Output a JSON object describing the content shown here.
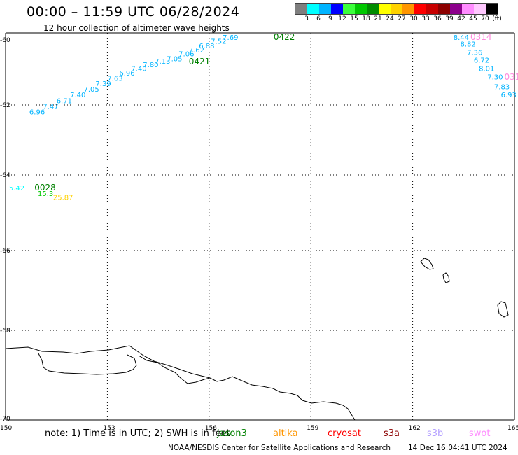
{
  "title": "00:00 – 11:59 UTC 06/28/2024",
  "subtitle": "12 hour collection of altimeter wave heights",
  "legend": {
    "colors": [
      "#7f7f7f",
      "#00ffff",
      "#00b4ff",
      "#0000ff",
      "#3cff3c",
      "#00c800",
      "#008c00",
      "#ffff00",
      "#ffd200",
      "#ff9600",
      "#ff0000",
      "#c80000",
      "#8c0000",
      "#8c008c",
      "#ff8cff",
      "#ffc8ff",
      "#000000"
    ],
    "labels": [
      "3",
      "6",
      "9",
      "12",
      "15",
      "18",
      "21",
      "24",
      "27",
      "30",
      "33",
      "36",
      "39",
      "42",
      "45",
      "70",
      "(ft)"
    ]
  },
  "axes": {
    "x_ticks": [
      "150",
      "153",
      "156",
      "159",
      "162",
      "165"
    ],
    "y_ticks": [
      "-60",
      "-62",
      "-64",
      "-66",
      "-68",
      "-70"
    ]
  },
  "tracks": [
    {
      "name": "0422",
      "color": "#008000",
      "label_pos": [
        157.9,
        -60.0
      ],
      "points": [
        {
          "v": "6.96",
          "lon": 150.7,
          "lat": -61.97
        },
        {
          "v": "7.47",
          "lon": 151.1,
          "lat": -61.82
        },
        {
          "v": "6.71",
          "lon": 151.5,
          "lat": -61.67
        },
        {
          "v": "7.40",
          "lon": 151.9,
          "lat": -61.52
        },
        {
          "v": "7.05",
          "lon": 152.3,
          "lat": -61.37
        },
        {
          "v": "7.39",
          "lon": 152.65,
          "lat": -61.22
        },
        {
          "v": "7.63",
          "lon": 153.0,
          "lat": -61.08
        },
        {
          "v": "6.96",
          "lon": 153.35,
          "lat": -60.94
        },
        {
          "v": "7.40",
          "lon": 153.7,
          "lat": -60.82
        },
        {
          "v": "7.80",
          "lon": 154.05,
          "lat": -60.72
        },
        {
          "v": "7.13",
          "lon": 154.4,
          "lat": -60.63
        },
        {
          "v": "7.05",
          "lon": 154.75,
          "lat": -60.56
        },
        {
          "v": "7.06",
          "lon": 155.1,
          "lat": -60.43
        },
        {
          "v": "7.62",
          "lon": 155.4,
          "lat": -60.33
        },
        {
          "v": "6.88",
          "lon": 155.7,
          "lat": -60.22
        },
        {
          "v": "7.52",
          "lon": 156.05,
          "lat": -60.1
        },
        {
          "v": "7.69",
          "lon": 156.4,
          "lat": -60.0
        }
      ]
    },
    {
      "name": "0421",
      "color": "#008000",
      "label_pos": [
        155.4,
        -60.65
      ],
      "points": []
    },
    {
      "name": "0314",
      "color": "#ff88dd",
      "label_pos": [
        163.7,
        -60.0
      ],
      "points": [
        {
          "v": "8.44",
          "lon": 163.2,
          "lat": -60.0
        },
        {
          "v": "8.82",
          "lon": 163.4,
          "lat": -60.18
        },
        {
          "v": "7.36",
          "lon": 163.6,
          "lat": -60.4
        },
        {
          "v": "6.72",
          "lon": 163.8,
          "lat": -60.6
        },
        {
          "v": "8.01",
          "lon": 163.95,
          "lat": -60.82
        },
        {
          "v": "7.30",
          "lon": 164.2,
          "lat": -61.04
        },
        {
          "v": "7.83",
          "lon": 164.4,
          "lat": -61.3
        },
        {
          "v": "6.93",
          "lon": 164.6,
          "lat": -61.52
        }
      ]
    },
    {
      "name": "031",
      "color": "#ff88dd",
      "label_pos": [
        164.7,
        -61.05
      ],
      "points": []
    },
    {
      "name": "0028",
      "color": "#008000",
      "label_pos": [
        150.85,
        -63.97
      ],
      "points": [
        {
          "v": "5.42",
          "lon": 150.1,
          "lat": -63.97
        },
        {
          "v": "15.3",
          "lon": 150.95,
          "lat": -64.12
        },
        {
          "v": "25.87",
          "lon": 151.4,
          "lat": -64.22
        }
      ]
    }
  ],
  "footer": {
    "note": "note:  1) Time is in UTC;  2) SWH is in feet",
    "satellites": [
      {
        "name": "jason3",
        "color": "#008000"
      },
      {
        "name": "altika",
        "color": "#ff9600"
      },
      {
        "name": "cryosat",
        "color": "#ff0000"
      },
      {
        "name": "s3a",
        "color": "#8c0000"
      },
      {
        "name": "s3b",
        "color": "#b4a0ff"
      },
      {
        "name": "swot",
        "color": "#ff8cff"
      }
    ],
    "credit": "NOAA/NESDIS Center for Satellite Applications and Research",
    "timestamp": "14 Dec 16:04:41 UTC 2024"
  }
}
